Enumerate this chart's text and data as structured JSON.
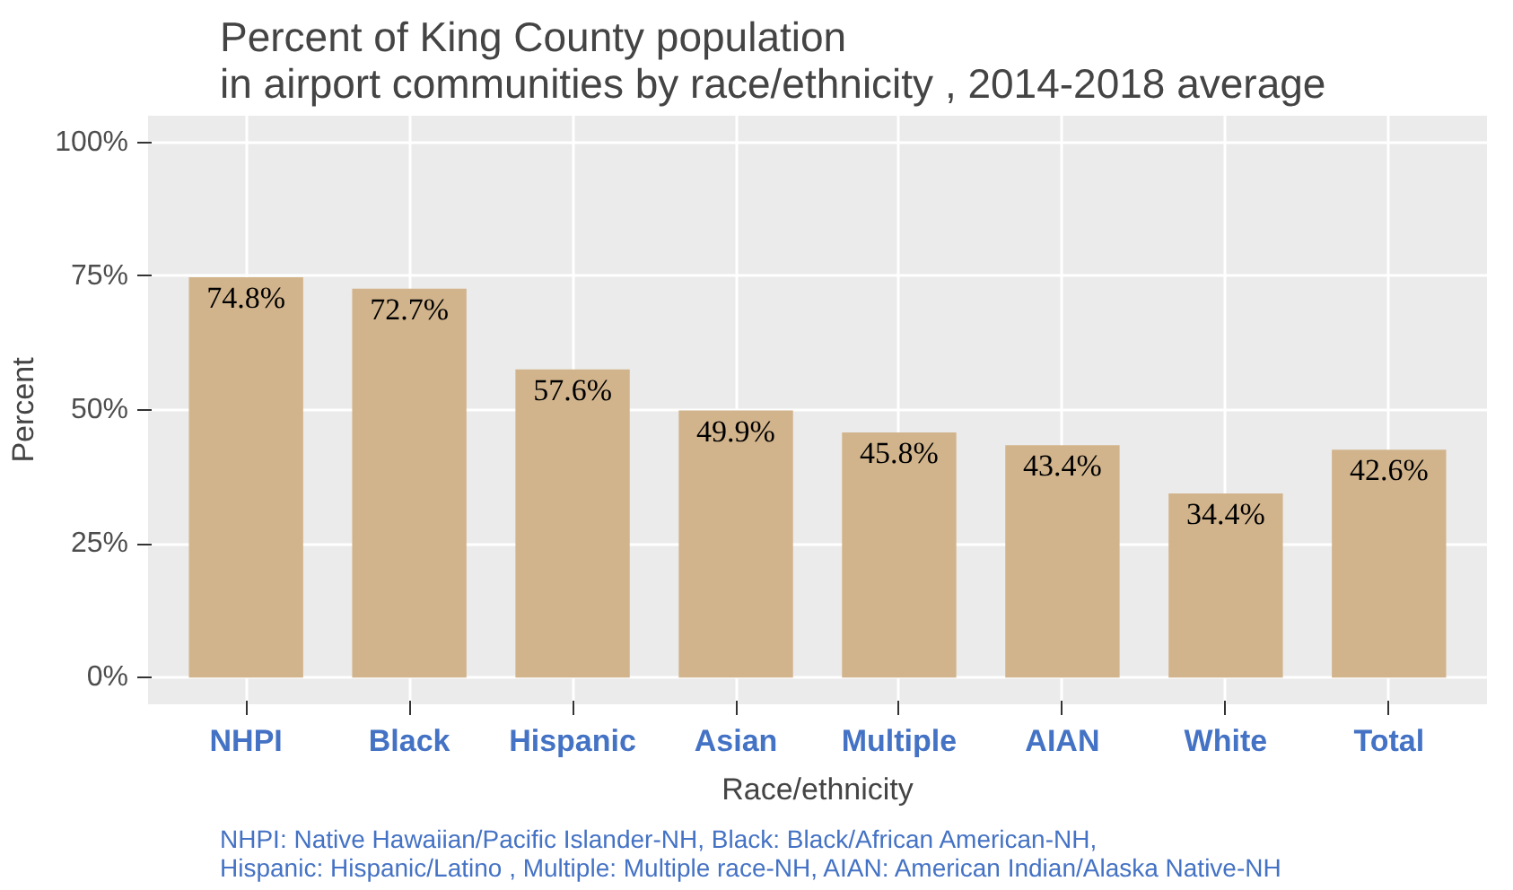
{
  "chart_data": {
    "type": "bar",
    "title": "Percent of King County population\nin airport communities by race/ethnicity , 2014-2018 average",
    "xlabel": "Race/ethnicity",
    "ylabel": "Percent",
    "categories": [
      "NHPI",
      "Black",
      "Hispanic",
      "Asian",
      "Multiple",
      "AIAN",
      "White",
      "Total"
    ],
    "values": [
      74.8,
      72.7,
      57.6,
      49.9,
      45.8,
      43.4,
      34.4,
      42.6
    ],
    "value_labels": [
      "74.8%",
      "72.7%",
      "57.6%",
      "49.9%",
      "45.8%",
      "43.4%",
      "34.4%",
      "42.6%"
    ],
    "color": "#d2b48c",
    "ylim": [
      -5,
      105
    ],
    "yticks": [
      {
        "value": 0,
        "label": "0%"
      },
      {
        "value": 25,
        "label": "25%"
      },
      {
        "value": 50,
        "label": "50%"
      },
      {
        "value": 75,
        "label": "75%"
      },
      {
        "value": 100,
        "label": "100%"
      }
    ],
    "grid": true,
    "annotations": [
      "NHPI: Native Hawaiian/Pacific Islander-NH, Black: Black/African American-NH,\nHispanic: Hispanic/Latino , Multiple: Multiple race-NH, AIAN: American Indian/Alaska Native-NH"
    ]
  }
}
